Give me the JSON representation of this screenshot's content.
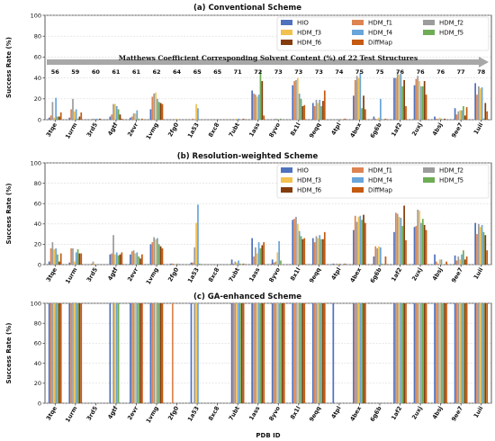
{
  "chart_data": [
    {
      "type": "bar",
      "title": "(a) Conventional Scheme",
      "xlabel": "",
      "ylabel": "Success Rate (%)",
      "ylim": [
        0,
        100
      ],
      "yticks": [
        0,
        20,
        40,
        60,
        80,
        100
      ],
      "grid": true,
      "legend_position": "top-right",
      "categories": [
        "3tqe",
        "1urm",
        "3rd5",
        "4gtf",
        "2evr",
        "1vmg",
        "2fg0",
        "1a53",
        "8xc8",
        "7ubt",
        "1ass",
        "8yvo",
        "8x1l",
        "9eqq",
        "4tpl",
        "4bex",
        "6g6b",
        "1af2",
        "2uxj",
        "4bsj",
        "9ee7",
        "1uii"
      ],
      "annotation_label": "Matthews Coefficient Corresponding Solvent Content (%) of 22 Test Structures",
      "solvent_content": [
        56,
        59,
        60,
        61,
        61,
        62,
        64,
        65,
        65,
        71,
        72,
        73,
        73,
        73,
        74,
        75,
        75,
        76,
        76,
        76,
        77,
        78
      ],
      "series": [
        {
          "name": "HIO",
          "values": [
            2,
            2,
            0,
            3,
            2,
            10,
            0,
            0,
            0,
            0,
            28,
            0,
            33,
            16,
            0,
            23,
            3,
            40,
            33,
            3,
            11,
            35
          ]
        },
        {
          "name": "HDM_f1",
          "values": [
            4,
            10,
            0,
            5,
            3,
            22,
            0,
            1,
            0,
            0,
            25,
            0,
            37,
            13,
            0,
            38,
            1,
            40,
            39,
            1,
            5,
            24
          ]
        },
        {
          "name": "HDM_f2",
          "values": [
            17,
            20,
            1,
            15,
            6,
            25,
            0,
            0,
            0,
            0,
            24,
            1,
            38,
            19,
            0,
            42,
            0,
            46,
            42,
            0,
            8,
            32
          ]
        },
        {
          "name": "HDM_f3",
          "values": [
            2,
            8,
            0,
            15,
            6,
            26,
            1,
            15,
            0,
            1,
            22,
            0,
            40,
            16,
            0,
            40,
            2,
            43,
            37,
            2,
            9,
            30
          ]
        },
        {
          "name": "HDM_f4",
          "values": [
            21,
            10,
            1,
            13,
            9,
            20,
            0,
            11,
            0,
            1,
            24,
            0,
            25,
            19,
            0,
            45,
            20,
            44,
            32,
            1,
            9,
            31
          ]
        },
        {
          "name": "HDM_f5",
          "values": [
            3,
            1,
            0,
            10,
            1,
            17,
            0,
            0,
            0,
            0,
            47,
            1,
            20,
            13,
            0,
            11,
            0,
            32,
            32,
            0,
            13,
            1
          ]
        },
        {
          "name": "HDM_f6",
          "values": [
            3,
            3,
            1,
            5,
            0,
            16,
            0,
            0,
            0,
            0,
            37,
            0,
            13,
            18,
            0,
            23,
            0,
            38,
            37,
            1,
            4,
            16
          ]
        },
        {
          "name": "DiffMap",
          "values": [
            7,
            7,
            0,
            1,
            1,
            15,
            0,
            0,
            0,
            1,
            4,
            0,
            14,
            28,
            1,
            10,
            1,
            13,
            24,
            0,
            12,
            8
          ]
        }
      ]
    },
    {
      "type": "bar",
      "title": "(b) Resolution-weighted Scheme",
      "xlabel": "",
      "ylabel": "Success Rate (%)",
      "ylim": [
        0,
        100
      ],
      "yticks": [
        0,
        20,
        40,
        60,
        80,
        100
      ],
      "grid": true,
      "legend_position": "top-right",
      "categories": [
        "3tqe",
        "1urm",
        "3rd5",
        "4gtf",
        "2evr",
        "1vmg",
        "2fg0",
        "1a53",
        "8xc8",
        "7ubt",
        "1ass",
        "8yvo",
        "8x1l",
        "9eqq",
        "4tpl",
        "4bex",
        "6g6b",
        "1af2",
        "2uxj",
        "4bsj",
        "9ee7",
        "1uii"
      ],
      "series": [
        {
          "name": "HIO",
          "values": [
            3,
            2,
            0,
            10,
            10,
            20,
            1,
            2,
            0,
            5,
            26,
            5,
            44,
            26,
            1,
            34,
            8,
            32,
            37,
            10,
            9,
            41
          ]
        },
        {
          "name": "HDM_f1",
          "values": [
            16,
            16,
            1,
            11,
            13,
            22,
            1,
            2,
            0,
            1,
            8,
            2,
            45,
            22,
            0,
            48,
            18,
            51,
            38,
            3,
            4,
            30
          ]
        },
        {
          "name": "HDM_f2",
          "values": [
            22,
            16,
            3,
            29,
            14,
            27,
            0,
            17,
            0,
            3,
            17,
            3,
            47,
            28,
            1,
            42,
            16,
            50,
            54,
            1,
            8,
            40
          ]
        },
        {
          "name": "HDM_f3",
          "values": [
            15,
            3,
            1,
            10,
            11,
            25,
            1,
            41,
            0,
            2,
            11,
            12,
            40,
            26,
            1,
            47,
            18,
            47,
            53,
            5,
            5,
            37
          ]
        },
        {
          "name": "HDM_f4",
          "values": [
            16,
            12,
            0,
            12,
            12,
            26,
            1,
            59,
            0,
            4,
            22,
            23,
            33,
            29,
            1,
            48,
            17,
            46,
            41,
            5,
            10,
            39
          ]
        },
        {
          "name": "HDM_f5",
          "values": [
            10,
            15,
            0,
            9,
            8,
            20,
            0,
            1,
            0,
            1,
            16,
            4,
            28,
            25,
            0,
            44,
            1,
            38,
            45,
            0,
            14,
            32
          ]
        },
        {
          "name": "HDM_f6",
          "values": [
            3,
            11,
            0,
            10,
            6,
            18,
            0,
            0,
            0,
            0,
            19,
            0,
            25,
            25,
            0,
            49,
            0,
            58,
            39,
            0,
            5,
            29
          ]
        },
        {
          "name": "DiffMap",
          "values": [
            11,
            11,
            0,
            12,
            10,
            16,
            0,
            0,
            0,
            1,
            22,
            0,
            26,
            32,
            1,
            41,
            8,
            24,
            34,
            3,
            8,
            14
          ]
        }
      ]
    },
    {
      "type": "bar",
      "title": "(c) GA-enhanced Scheme",
      "xlabel": "PDB ID",
      "ylabel": "Success Rate (%)",
      "ylim": [
        0,
        100
      ],
      "yticks": [
        0,
        20,
        40,
        60,
        80,
        100
      ],
      "grid": true,
      "categories": [
        "3tqe",
        "1urm",
        "3rd5",
        "4gtf",
        "2evr",
        "1vmg",
        "2fg0",
        "1a53",
        "8xc8",
        "7ubt",
        "1ass",
        "8yvo",
        "8x1l",
        "9eqq",
        "4tpl",
        "4bex",
        "6g6b",
        "1af2",
        "2uxj",
        "4bsj",
        "9ee7",
        "1uii"
      ],
      "series": [
        {
          "name": "HIO",
          "values": [
            100,
            100,
            0,
            100,
            100,
            100,
            0,
            100,
            0,
            100,
            100,
            100,
            100,
            100,
            100,
            100,
            0,
            100,
            100,
            100,
            100,
            100
          ]
        },
        {
          "name": "HDM_f1",
          "values": [
            100,
            100,
            0,
            0,
            100,
            100,
            100,
            0,
            0,
            100,
            100,
            100,
            100,
            100,
            0,
            100,
            0,
            100,
            100,
            100,
            100,
            100
          ]
        },
        {
          "name": "HDM_f2",
          "values": [
            100,
            100,
            0,
            100,
            100,
            100,
            0,
            100,
            0,
            100,
            100,
            100,
            100,
            100,
            0,
            100,
            0,
            100,
            100,
            100,
            100,
            100
          ]
        },
        {
          "name": "HDM_f3",
          "values": [
            100,
            100,
            0,
            100,
            100,
            100,
            0,
            100,
            0,
            100,
            100,
            100,
            100,
            100,
            0,
            100,
            0,
            100,
            100,
            100,
            100,
            100
          ]
        },
        {
          "name": "HDM_f4",
          "values": [
            100,
            100,
            0,
            100,
            100,
            100,
            0,
            100,
            0,
            100,
            100,
            100,
            100,
            100,
            0,
            100,
            0,
            100,
            100,
            100,
            100,
            100
          ]
        },
        {
          "name": "HDM_f5",
          "values": [
            100,
            100,
            0,
            100,
            100,
            100,
            0,
            0,
            0,
            100,
            100,
            100,
            100,
            100,
            0,
            100,
            0,
            100,
            100,
            100,
            100,
            100
          ]
        },
        {
          "name": "HDM_f6",
          "values": [
            100,
            100,
            0,
            0,
            100,
            100,
            0,
            0,
            0,
            100,
            100,
            100,
            100,
            100,
            0,
            100,
            0,
            100,
            100,
            100,
            100,
            100
          ]
        },
        {
          "name": "DiffMap",
          "values": [
            100,
            100,
            0,
            0,
            100,
            100,
            0,
            0,
            0,
            100,
            100,
            100,
            100,
            100,
            0,
            100,
            0,
            100,
            100,
            100,
            100,
            100
          ]
        }
      ]
    }
  ],
  "colors": {
    "HIO": "#4f72be",
    "HDM_f1": "#dd8452",
    "HDM_f2": "#9c9c9c",
    "HDM_f3": "#f2c14e",
    "HDM_f4": "#6aa5d9",
    "HDM_f5": "#6fad55",
    "HDM_f6": "#843c0c",
    "DiffMap": "#c55a11",
    "grid": "#d9d9d9",
    "arrow": "#a8a8a8"
  }
}
